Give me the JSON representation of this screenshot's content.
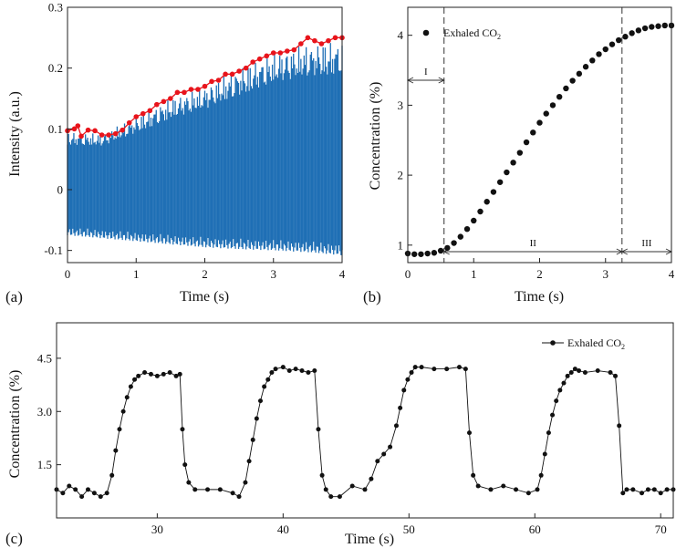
{
  "chart_data": [
    {
      "panel_label": "(a)",
      "type": "line",
      "xlabel": "Time (s)",
      "ylabel": "Intensity (a.u.)",
      "xlim": [
        0,
        4
      ],
      "ylim": [
        -0.12,
        0.3
      ],
      "xticks": [
        0,
        1,
        2,
        3,
        4
      ],
      "yticks": [
        -0.1,
        0,
        0.1,
        0.2,
        0.3
      ],
      "xtick_labels": [
        "0",
        "1",
        "2",
        "3",
        "4"
      ],
      "ytick_labels": [
        "-0.1",
        "0",
        "0.1",
        "0.2",
        "0.3"
      ],
      "signal_color": "#1f6fb5",
      "envelope_color": "#e8141b",
      "series": [
        {
          "values_upper": [
            [
              0,
              0.095
            ],
            [
              0.5,
              0.092
            ],
            [
              1,
              0.12
            ],
            [
              1.5,
              0.15
            ],
            [
              2,
              0.17
            ],
            [
              2.5,
              0.2
            ],
            [
              3,
              0.225
            ],
            [
              3.5,
              0.24
            ],
            [
              4,
              0.245
            ]
          ],
          "values_lower": [
            [
              0,
              -0.075
            ],
            [
              0.5,
              -0.08
            ],
            [
              1,
              -0.085
            ],
            [
              1.5,
              -0.09
            ],
            [
              2,
              -0.095
            ],
            [
              2.5,
              -0.098
            ],
            [
              3,
              -0.1
            ],
            [
              3.5,
              -0.103
            ],
            [
              4,
              -0.108
            ]
          ]
        },
        {
          "values": [
            [
              0,
              0.097
            ],
            [
              0.1,
              0.1
            ],
            [
              0.15,
              0.105
            ],
            [
              0.2,
              0.088
            ],
            [
              0.3,
              0.098
            ],
            [
              0.4,
              0.097
            ],
            [
              0.5,
              0.09
            ],
            [
              0.6,
              0.09
            ],
            [
              0.7,
              0.092
            ],
            [
              0.8,
              0.098
            ],
            [
              0.9,
              0.11
            ],
            [
              1.0,
              0.12
            ],
            [
              1.1,
              0.125
            ],
            [
              1.2,
              0.13
            ],
            [
              1.3,
              0.14
            ],
            [
              1.4,
              0.145
            ],
            [
              1.5,
              0.15
            ],
            [
              1.6,
              0.16
            ],
            [
              1.7,
              0.16
            ],
            [
              1.8,
              0.165
            ],
            [
              1.9,
              0.165
            ],
            [
              2.0,
              0.17
            ],
            [
              2.1,
              0.178
            ],
            [
              2.2,
              0.18
            ],
            [
              2.3,
              0.19
            ],
            [
              2.4,
              0.19
            ],
            [
              2.5,
              0.195
            ],
            [
              2.6,
              0.2
            ],
            [
              2.7,
              0.21
            ],
            [
              2.8,
              0.215
            ],
            [
              2.9,
              0.22
            ],
            [
              3.0,
              0.225
            ],
            [
              3.1,
              0.225
            ],
            [
              3.2,
              0.228
            ],
            [
              3.3,
              0.23
            ],
            [
              3.4,
              0.24
            ],
            [
              3.5,
              0.25
            ],
            [
              3.6,
              0.245
            ],
            [
              3.7,
              0.24
            ],
            [
              3.8,
              0.245
            ],
            [
              3.9,
              0.25
            ],
            [
              4.0,
              0.25
            ]
          ]
        }
      ]
    },
    {
      "panel_label": "(b)",
      "type": "scatter",
      "xlabel": "Time (s)",
      "ylabel": "Concentration (%)",
      "xlim": [
        0,
        4
      ],
      "ylim": [
        0.75,
        4.4
      ],
      "xticks": [
        0,
        1,
        2,
        3,
        4
      ],
      "yticks": [
        1,
        2,
        3,
        4
      ],
      "xtick_labels": [
        "0",
        "1",
        "2",
        "3",
        "4"
      ],
      "ytick_labels": [
        "1",
        "2",
        "3",
        "4"
      ],
      "legend": {
        "label": "Exhaled CO",
        "subscript": "2",
        "position": "top-left"
      },
      "regions": [
        {
          "label": "I",
          "x_start": 0,
          "x_end": 0.55
        },
        {
          "label": "II",
          "x_start": 0.55,
          "x_end": 3.25
        },
        {
          "label": "III",
          "x_start": 3.25,
          "x_end": 4
        }
      ],
      "dashed_lines_x": [
        0.55,
        3.25
      ],
      "series": [
        {
          "name": "Exhaled CO2",
          "x": [
            0,
            0.1,
            0.2,
            0.3,
            0.4,
            0.5,
            0.6,
            0.7,
            0.8,
            0.9,
            1.0,
            1.1,
            1.2,
            1.3,
            1.4,
            1.5,
            1.6,
            1.7,
            1.8,
            1.9,
            2.0,
            2.1,
            2.2,
            2.3,
            2.4,
            2.5,
            2.6,
            2.7,
            2.8,
            2.9,
            3.0,
            3.1,
            3.2,
            3.3,
            3.4,
            3.5,
            3.6,
            3.7,
            3.8,
            3.9,
            4.0
          ],
          "y": [
            0.88,
            0.87,
            0.87,
            0.88,
            0.89,
            0.92,
            0.96,
            1.03,
            1.12,
            1.23,
            1.35,
            1.48,
            1.62,
            1.76,
            1.9,
            2.04,
            2.18,
            2.32,
            2.47,
            2.61,
            2.75,
            2.88,
            3.0,
            3.12,
            3.24,
            3.35,
            3.45,
            3.55,
            3.64,
            3.73,
            3.8,
            3.87,
            3.93,
            3.98,
            4.03,
            4.07,
            4.1,
            4.12,
            4.13,
            4.14,
            4.14
          ]
        }
      ]
    },
    {
      "panel_label": "(c)",
      "type": "line",
      "xlabel": "Time (s)",
      "ylabel": "Concentration (%)",
      "xlim": [
        22,
        71
      ],
      "ylim": [
        0,
        5.5
      ],
      "xticks": [
        30,
        40,
        50,
        60,
        70
      ],
      "yticks": [
        1.5,
        3.0,
        4.5
      ],
      "xtick_labels": [
        "30",
        "40",
        "50",
        "60",
        "70"
      ],
      "ytick_labels": [
        "1.5",
        "3.0",
        "4.5"
      ],
      "legend": {
        "label": "Exhaled CO",
        "subscript": "2",
        "position": "top-right"
      },
      "series": [
        {
          "name": "Exhaled CO2",
          "x": [
            22.0,
            22.5,
            23.0,
            23.5,
            24.0,
            24.5,
            25.0,
            25.5,
            26.0,
            26.4,
            26.7,
            27.0,
            27.3,
            27.6,
            27.9,
            28.2,
            28.5,
            29.0,
            29.5,
            30.0,
            30.5,
            31.0,
            31.5,
            31.8,
            32.0,
            32.2,
            32.5,
            33.0,
            34.0,
            35.0,
            36.0,
            36.5,
            37.0,
            37.3,
            37.6,
            37.9,
            38.2,
            38.5,
            38.8,
            39.1,
            39.4,
            40.0,
            40.5,
            41.0,
            41.5,
            42.0,
            42.5,
            42.8,
            43.1,
            43.4,
            43.8,
            44.5,
            45.5,
            46.5,
            47.0,
            47.5,
            48.0,
            48.5,
            49.0,
            49.3,
            49.6,
            49.9,
            50.2,
            50.5,
            51.0,
            52.0,
            53.0,
            54.0,
            54.5,
            54.8,
            55.1,
            55.5,
            56.5,
            57.5,
            58.5,
            59.5,
            60.2,
            60.5,
            60.8,
            61.1,
            61.4,
            61.7,
            62.0,
            62.3,
            62.6,
            62.9,
            63.2,
            63.5,
            64.0,
            65.0,
            66.0,
            66.4,
            66.7,
            67.0,
            67.3,
            67.8,
            68.5,
            69.0,
            69.5,
            70.0,
            70.5,
            71.0
          ],
          "y": [
            0.8,
            0.7,
            0.9,
            0.8,
            0.6,
            0.8,
            0.7,
            0.6,
            0.7,
            1.2,
            1.9,
            2.5,
            3.0,
            3.4,
            3.7,
            3.9,
            4.0,
            4.1,
            4.05,
            4.0,
            4.05,
            4.1,
            4.0,
            4.05,
            2.5,
            1.5,
            1.0,
            0.8,
            0.8,
            0.8,
            0.7,
            0.6,
            1.0,
            1.6,
            2.2,
            2.8,
            3.3,
            3.7,
            3.9,
            4.1,
            4.2,
            4.25,
            4.15,
            4.2,
            4.15,
            4.1,
            4.15,
            2.5,
            1.2,
            0.8,
            0.6,
            0.6,
            0.9,
            0.8,
            1.1,
            1.6,
            1.8,
            2.0,
            2.6,
            3.1,
            3.6,
            3.9,
            4.1,
            4.25,
            4.25,
            4.2,
            4.2,
            4.25,
            4.2,
            2.4,
            1.2,
            0.9,
            0.8,
            0.9,
            0.8,
            0.7,
            0.8,
            1.2,
            1.8,
            2.4,
            2.9,
            3.3,
            3.6,
            3.8,
            4.0,
            4.1,
            4.2,
            4.15,
            4.1,
            4.15,
            4.1,
            4.0,
            2.6,
            0.7,
            0.8,
            0.8,
            0.7,
            0.8,
            0.8,
            0.7,
            0.8,
            0.8
          ]
        }
      ]
    }
  ]
}
